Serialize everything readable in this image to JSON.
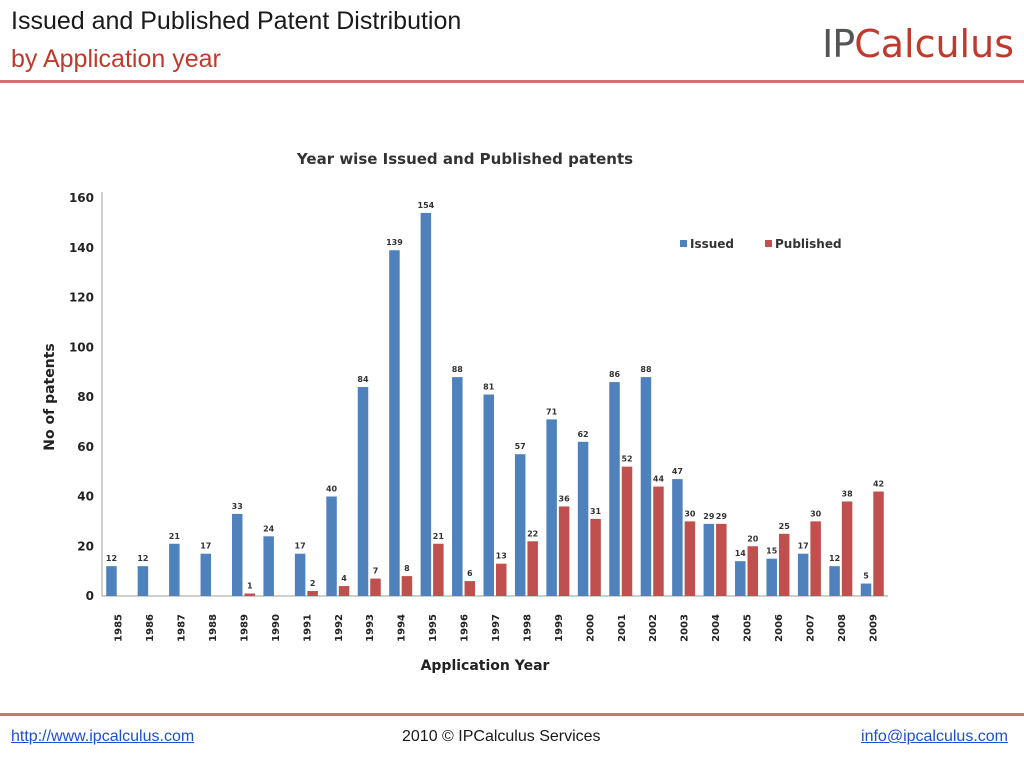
{
  "header": {
    "title": "Issued and Published Patent Distribution",
    "subtitle": "by Application year",
    "logo_ip": "IP",
    "logo_rest": "Calculus"
  },
  "footer": {
    "website": "http://www.ipcalculus.com",
    "copyright": "2010 © IPCalculus Services",
    "email": "info@ipcalculus.com"
  },
  "colors": {
    "issued": "#4f81bd",
    "published": "#c0504d",
    "accent": "#c0392b"
  },
  "chart_data": {
    "type": "bar",
    "title": "Year wise Issued and Published patents",
    "xlabel": "Application Year",
    "ylabel": "No of patents",
    "ylim": [
      0,
      160
    ],
    "yticks": [
      0,
      20,
      40,
      60,
      80,
      100,
      120,
      140,
      160
    ],
    "grid": false,
    "legend_position": "top-right",
    "categories": [
      "1985",
      "1986",
      "1987",
      "1988",
      "1989",
      "1990",
      "1991",
      "1992",
      "1993",
      "1994",
      "1995",
      "1996",
      "1997",
      "1998",
      "1999",
      "2000",
      "2001",
      "2002",
      "2003",
      "2004",
      "2005",
      "2006",
      "2007",
      "2008",
      "2009"
    ],
    "series": [
      {
        "name": "Issued",
        "values": [
          12,
          12,
          21,
          17,
          33,
          24,
          17,
          40,
          84,
          139,
          154,
          88,
          81,
          57,
          71,
          62,
          86,
          88,
          47,
          29,
          14,
          15,
          17,
          12,
          5
        ]
      },
      {
        "name": "Published",
        "values": [
          null,
          null,
          null,
          null,
          1,
          null,
          2,
          4,
          7,
          8,
          21,
          6,
          13,
          22,
          36,
          31,
          52,
          44,
          30,
          29,
          20,
          25,
          30,
          38,
          42
        ]
      }
    ]
  }
}
